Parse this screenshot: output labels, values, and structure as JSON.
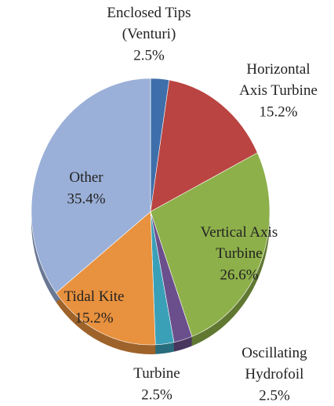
{
  "chart_data": {
    "type": "pie",
    "categories": [
      "Enclosed Tips\n(Venturi)",
      "Horizontal\nAxis Turbine",
      "Vertical Axis\nTurbine",
      "Oscillating\nHydrofoil",
      "Turbine",
      "Tidal Kite",
      "Other"
    ],
    "values": [
      2.5,
      15.2,
      26.6,
      2.5,
      2.5,
      15.2,
      35.4
    ],
    "value_labels": [
      "2.5%",
      "15.2%",
      "26.6%",
      "2.5%",
      "2.5%",
      "15.2%",
      "35.4%"
    ],
    "colors": [
      "#3f6faa",
      "#b94441",
      "#8db04a",
      "#6a4f8c",
      "#3aa0b8",
      "#e8913e",
      "#9bb0d8"
    ]
  }
}
